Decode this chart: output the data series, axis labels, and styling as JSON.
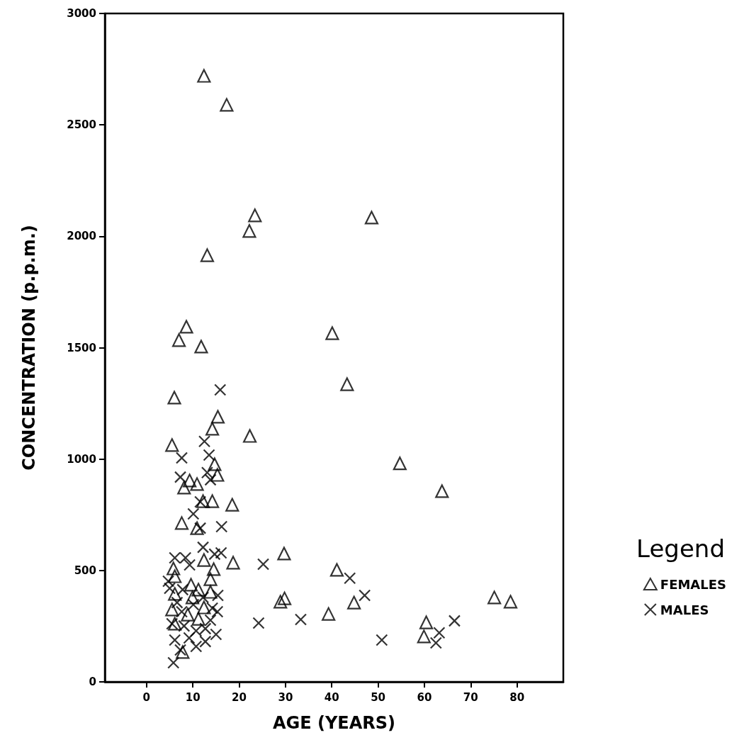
{
  "chart_data": {
    "type": "scatter",
    "xlabel": "AGE (YEARS)",
    "ylabel": "CONCENTRATION (p.p.m.)",
    "legend_title": "Legend",
    "legend": "right",
    "grid": false,
    "xlim": [
      -9,
      90
    ],
    "xticks": [
      0,
      10,
      20,
      30,
      40,
      50,
      60,
      70,
      80
    ],
    "ylim": [
      0,
      3000
    ],
    "yticks": [
      0,
      500,
      1000,
      1500,
      2000,
      2500,
      3000
    ],
    "series": [
      {
        "name": "FEMALES",
        "color": "#000000",
        "marker": "triangle",
        "x": [
          12.4,
          17.3,
          22.2,
          23.4,
          48.6,
          13.1,
          8.6,
          7.0,
          11.8,
          40.1,
          43.3,
          6.0,
          15.4,
          14.2,
          22.3,
          5.5,
          54.7,
          63.8,
          29.7,
          41.1,
          29.8,
          28.9,
          44.8,
          39.3,
          60.4,
          59.9,
          75.1,
          78.6,
          9.3,
          8.1,
          10.9,
          15.3,
          14.7,
          12.2,
          14.2,
          18.5,
          7.6,
          10.9,
          12.4,
          18.7,
          5.8,
          14.5,
          13.8,
          6.1,
          9.6,
          11.2,
          6.1,
          13.8,
          9.9,
          5.5,
          12.4,
          8.9,
          11.2,
          6.1,
          7.8
        ],
        "values": [
          2720,
          2590,
          2024,
          2094,
          2084,
          1915,
          1594,
          1534,
          1505,
          1565,
          1336,
          1276,
          1190,
          1136,
          1104,
          1063,
          981,
          856,
          576,
          503,
          375,
          360,
          356,
          305,
          267,
          204,
          379,
          360,
          904,
          872,
          888,
          929,
          977,
          811,
          811,
          795,
          713,
          690,
          547,
          535,
          509,
          506,
          461,
          474,
          436,
          414,
          395,
          404,
          379,
          325,
          334,
          302,
          283,
          261,
          134
        ]
      },
      {
        "name": "MALES",
        "color": "#000000",
        "marker": "cross",
        "x": [
          15.9,
          12.5,
          7.6,
          13.5,
          25.2,
          43.9,
          47.1,
          24.2,
          33.3,
          50.8,
          63.2,
          62.5,
          66.5,
          7.3,
          13.1,
          13.8,
          11.6,
          10.1,
          11.6,
          16.2,
          12.2,
          16.1,
          14.7,
          6.1,
          8.4,
          9.3,
          4.7,
          5.0,
          7.8,
          15.4,
          12.2,
          6.6,
          10.1,
          15.3,
          7.6,
          13.8,
          5.5,
          8.1,
          12.7,
          10.7,
          6.1,
          9.2,
          10.7,
          7.3,
          5.8,
          14.2,
          15.0,
          12.7
        ],
        "values": [
          1311,
          1079,
          1005,
          1018,
          528,
          465,
          388,
          264,
          280,
          188,
          220,
          175,
          274,
          919,
          939,
          907,
          808,
          754,
          690,
          697,
          604,
          579,
          573,
          557,
          557,
          525,
          452,
          420,
          414,
          388,
          379,
          356,
          347,
          315,
          315,
          277,
          261,
          251,
          239,
          229,
          188,
          197,
          159,
          143,
          86,
          331,
          213,
          181
        ]
      }
    ]
  }
}
